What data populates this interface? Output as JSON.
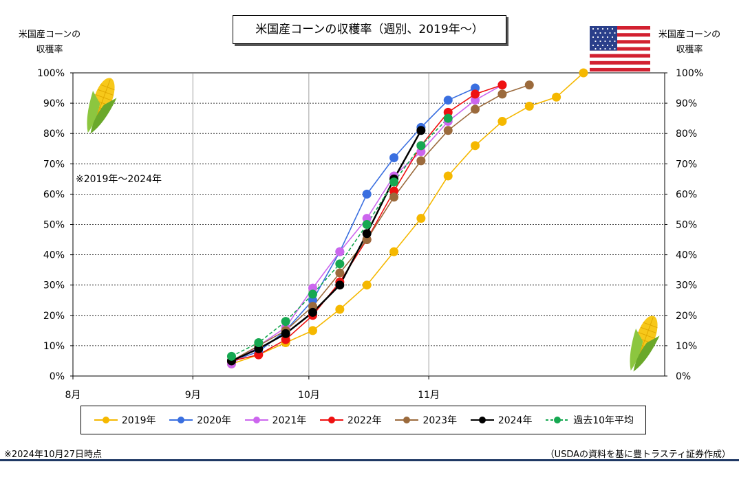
{
  "title": "米国産コーンの収穫率（週別、2019年～）",
  "axis_title_left": [
    "米国産コーンの",
    "収穫率"
  ],
  "axis_title_right": [
    "米国産コーンの",
    "収穫率"
  ],
  "range_note": "※2019年～2024年",
  "footer_left": "※2024年10月27日時点",
  "footer_right": "（USDAの資料を基に豊トラスティ証券作成）",
  "colors": {
    "2019": "#f5b800",
    "2020": "#3a6fe0",
    "2021": "#cc66ee",
    "2022": "#ee1111",
    "2023": "#9b6a3c",
    "2024": "#000000",
    "avg": "#16a851"
  },
  "chart_data": {
    "type": "line",
    "x_unit": "day of year",
    "xlim": [
      213,
      366
    ],
    "ylim": [
      0,
      100
    ],
    "x_ticks": [
      {
        "label": "8月",
        "x": 213
      },
      {
        "label": "9月",
        "x": 244
      },
      {
        "label": "10月",
        "x": 274
      },
      {
        "label": "11月",
        "x": 305
      }
    ],
    "y_ticks": [
      "0%",
      "10%",
      "20%",
      "30%",
      "40%",
      "50%",
      "60%",
      "70%",
      "80%",
      "90%",
      "100%"
    ],
    "grid": true,
    "series": [
      {
        "name": "2019年",
        "key": "2019",
        "dashed": false,
        "x": [
          254,
          261,
          268,
          275,
          282,
          289,
          296,
          303,
          310,
          317,
          324,
          331,
          338,
          345
        ],
        "y": [
          4,
          7,
          11,
          15,
          22,
          30,
          41,
          52,
          66,
          76,
          84,
          89,
          92,
          100
        ]
      },
      {
        "name": "2020年",
        "key": "2020",
        "dashed": false,
        "x": [
          254,
          261,
          268,
          275,
          282,
          289,
          296,
          303,
          310,
          317
        ],
        "y": [
          5,
          8,
          15,
          25,
          41,
          60,
          72,
          82,
          91,
          95
        ]
      },
      {
        "name": "2021年",
        "key": "2021",
        "dashed": false,
        "x": [
          254,
          261,
          268,
          275,
          282,
          289,
          296,
          303,
          310,
          317,
          324
        ],
        "y": [
          4,
          10,
          16,
          29,
          41,
          52,
          66,
          74,
          84,
          91,
          96
        ]
      },
      {
        "name": "2022年",
        "key": "2022",
        "dashed": false,
        "x": [
          254,
          261,
          268,
          275,
          282,
          289,
          296,
          303,
          310,
          317,
          324
        ],
        "y": [
          5,
          7,
          12,
          20,
          31,
          45,
          61,
          76,
          87,
          93,
          96
        ]
      },
      {
        "name": "2023年",
        "key": "2023",
        "dashed": false,
        "x": [
          254,
          261,
          268,
          275,
          282,
          289,
          296,
          303,
          310,
          317,
          324,
          331
        ],
        "y": [
          5,
          10,
          15,
          23,
          34,
          45,
          59,
          71,
          81,
          88,
          93,
          96
        ]
      },
      {
        "name": "2024年",
        "key": "2024",
        "dashed": false,
        "x": [
          254,
          261,
          268,
          275,
          282,
          289,
          296,
          303
        ],
        "y": [
          5,
          9,
          14,
          21,
          30,
          47,
          65,
          81
        ]
      },
      {
        "name": "過去10年平均",
        "key": "avg",
        "dashed": true,
        "x": [
          254,
          261,
          268,
          275,
          282,
          289,
          296,
          303,
          310
        ],
        "y": [
          6.5,
          11,
          18,
          27,
          37,
          50,
          64,
          76,
          85
        ]
      }
    ]
  }
}
